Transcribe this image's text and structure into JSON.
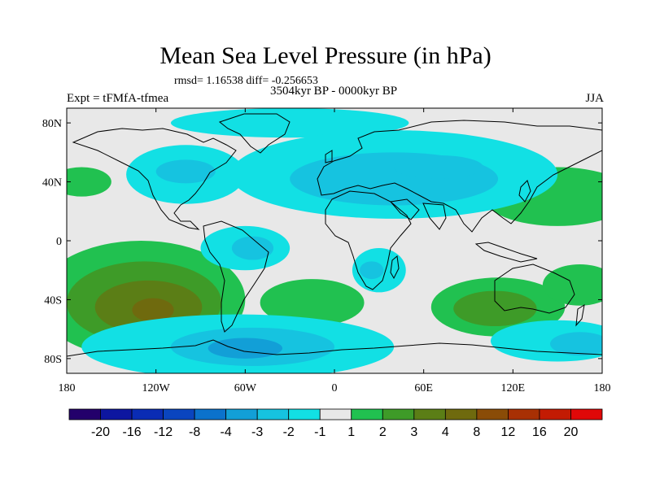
{
  "chart_data": {
    "type": "heatmap",
    "title": "Mean Sea Level Pressure (in hPa)",
    "stats": "rmsd= 1.16538 diff= -0.256653",
    "period": "3504kyr BP - 0000kyr BP",
    "expt": "Expt = tFMfA-tfmea",
    "season": "JJA",
    "x_ticks": [
      "180",
      "120W",
      "60W",
      "0",
      "60E",
      "120E",
      "180"
    ],
    "x_tick_values": [
      -180,
      -120,
      -60,
      0,
      60,
      120,
      180
    ],
    "y_ticks": [
      "80N",
      "40N",
      "0",
      "40S",
      "80S"
    ],
    "y_tick_values": [
      80,
      40,
      0,
      -40,
      -80
    ],
    "xlim": [
      -180,
      180
    ],
    "ylim": [
      -90,
      90
    ],
    "colorbar": {
      "labels": [
        "-20",
        "-16",
        "-12",
        "-8",
        "-4",
        "-3",
        "-2",
        "-1",
        "1",
        "2",
        "3",
        "4",
        "8",
        "12",
        "16",
        "20"
      ],
      "colors": [
        "#23006b",
        "#0d16a0",
        "#0a2cb4",
        "#0a45bf",
        "#0b72cc",
        "#129fd7",
        "#16c3e0",
        "#12e0e4",
        "#e8e8e8",
        "#21c150",
        "#3e9b28",
        "#5b7e16",
        "#6f6a0e",
        "#8a4c07",
        "#a83004",
        "#c31b03",
        "#e00808"
      ]
    },
    "regions": [
      {
        "name": "north-pacific-positive",
        "level": "2",
        "lon": -170,
        "lat": 40,
        "w": 20,
        "h": 10
      },
      {
        "name": "south-pacific-high-outer",
        "level": "2",
        "lon": -130,
        "lat": -40,
        "w": 70,
        "h": 40
      },
      {
        "name": "south-pacific-high-mid",
        "level": "3",
        "lon": -128,
        "lat": -42,
        "w": 52,
        "h": 28
      },
      {
        "name": "south-pacific-high-inner",
        "level": "4",
        "lon": -125,
        "lat": -45,
        "w": 36,
        "h": 18
      },
      {
        "name": "south-pacific-high-core",
        "level": "8",
        "lon": -122,
        "lat": -47,
        "w": 14,
        "h": 8
      },
      {
        "name": "south-atlantic-positive",
        "level": "2",
        "lon": -15,
        "lat": -42,
        "w": 35,
        "h": 16
      },
      {
        "name": "indian-ocean-positive",
        "level": "2",
        "lon": 110,
        "lat": -45,
        "w": 45,
        "h": 20
      },
      {
        "name": "indian-ocean-positive-core",
        "level": "3",
        "lon": 108,
        "lat": -46,
        "w": 28,
        "h": 12
      },
      {
        "name": "northwest-pacific-positive",
        "level": "2",
        "lon": 150,
        "lat": 30,
        "w": 50,
        "h": 20
      },
      {
        "name": "south-pacific-east-positive",
        "level": "2",
        "lon": 165,
        "lat": -30,
        "w": 25,
        "h": 14
      },
      {
        "name": "north-atlantic-low",
        "level": "-1",
        "lon": -30,
        "lat": 80,
        "w": 80,
        "h": 10
      },
      {
        "name": "north-america-low",
        "level": "-1",
        "lon": -100,
        "lat": 45,
        "w": 40,
        "h": 20
      },
      {
        "name": "north-america-low-core",
        "level": "-2",
        "lon": -100,
        "lat": 47,
        "w": 20,
        "h": 8
      },
      {
        "name": "eurasia-low",
        "level": "-1",
        "lon": 40,
        "lat": 45,
        "w": 110,
        "h": 30
      },
      {
        "name": "eurasia-low-core",
        "level": "-2",
        "lon": 40,
        "lat": 42,
        "w": 70,
        "h": 18
      },
      {
        "name": "central-asia-low",
        "level": "-2",
        "lon": 70,
        "lat": 50,
        "w": 30,
        "h": 8
      },
      {
        "name": "south-america-low",
        "level": "-1",
        "lon": -60,
        "lat": -5,
        "w": 30,
        "h": 15
      },
      {
        "name": "south-america-low-core",
        "level": "-2",
        "lon": -55,
        "lat": -5,
        "w": 14,
        "h": 8
      },
      {
        "name": "southern-africa-low",
        "level": "-1",
        "lon": 30,
        "lat": -20,
        "w": 18,
        "h": 15
      },
      {
        "name": "southern-africa-low-core",
        "level": "-2",
        "lon": 25,
        "lat": -20,
        "w": 8,
        "h": 6
      },
      {
        "name": "southern-ocean-low",
        "level": "-1",
        "lon": -65,
        "lat": -72,
        "w": 105,
        "h": 22
      },
      {
        "name": "drake-passage-low",
        "level": "-2",
        "lon": -55,
        "lat": -72,
        "w": 55,
        "h": 13
      },
      {
        "name": "drake-passage-low-core",
        "level": "-3",
        "lon": -60,
        "lat": -73,
        "w": 25,
        "h": 7
      },
      {
        "name": "south-indian-low",
        "level": "-1",
        "lon": 150,
        "lat": -68,
        "w": 45,
        "h": 14
      },
      {
        "name": "south-indian-low-core",
        "level": "-2",
        "lon": 165,
        "lat": -70,
        "w": 20,
        "h": 8
      }
    ]
  }
}
